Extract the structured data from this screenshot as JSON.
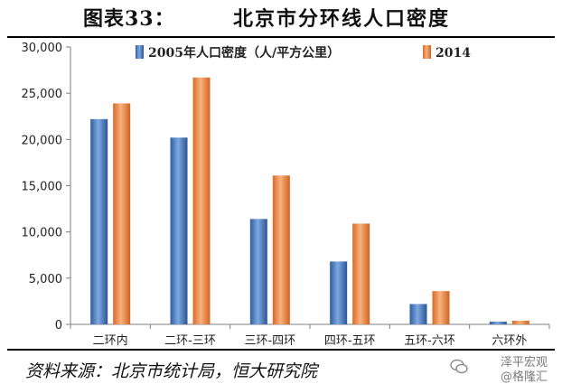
{
  "header": {
    "figure_label": "图表33：",
    "title": "北京市分环线人口密度"
  },
  "source": "资料来源：北京市统计局，恒大研究院",
  "watermark": {
    "line1": "泽平宏观",
    "line2": "@格隆汇"
  },
  "colors": {
    "series_2005": "#3f72b8",
    "series_2014": "#f08a3c",
    "axis": "#7f7f7f"
  },
  "chart_data": {
    "type": "bar",
    "categories": [
      "二环内",
      "二环-三环",
      "三环-四环",
      "四环-五环",
      "五环-六环",
      "六环外"
    ],
    "series": [
      {
        "name": "2005年人口密度（人/平方公里）",
        "values": [
          22200,
          20200,
          11400,
          6800,
          2200,
          300
        ]
      },
      {
        "name": "2014",
        "values": [
          23900,
          26700,
          16100,
          10900,
          3600,
          400
        ]
      }
    ],
    "ylim": [
      0,
      30000
    ],
    "yticks": [
      "0",
      "5,000",
      "10,000",
      "15,000",
      "20,000",
      "25,000",
      "30,000"
    ],
    "ytick_values": [
      0,
      5000,
      10000,
      15000,
      20000,
      25000,
      30000
    ],
    "legend_position": "top",
    "grid": false
  }
}
